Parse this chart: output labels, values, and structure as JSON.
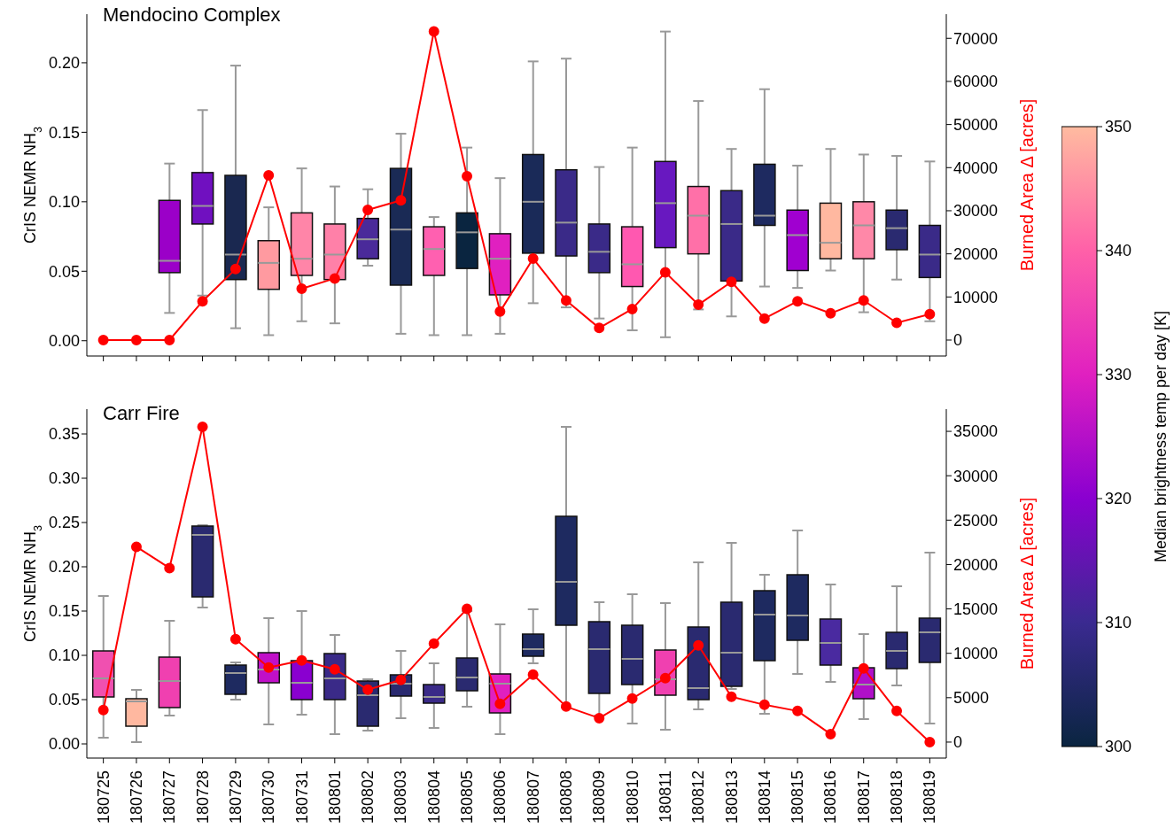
{
  "chart_data": [
    {
      "type": "box",
      "title": "Mendocino Complex",
      "ylabel": "CrIS NEMR NH$_{3}$",
      "y2label": "Burned Area Δ [acres]",
      "categories": [
        "180725",
        "180726",
        "180727",
        "180728",
        "180729",
        "180730",
        "180731",
        "180801",
        "180802",
        "180803",
        "180804",
        "180805",
        "180806",
        "180807",
        "180808",
        "180809",
        "180810",
        "180811",
        "180812",
        "180813",
        "180814",
        "180815",
        "180816",
        "180817",
        "180818",
        "180819"
      ],
      "series": [
        {
          "boxes": [
            null,
            null,
            {
              "low": 0.02,
              "q1": 0.049,
              "median": 0.0575,
              "q3": 0.101,
              "high": 0.1275
            },
            {
              "low": 0.0325,
              "q1": 0.084,
              "median": 0.097,
              "q3": 0.121,
              "high": 0.166
            },
            {
              "low": 0.009,
              "q1": 0.044,
              "median": 0.062,
              "q3": 0.119,
              "high": 0.198
            },
            {
              "low": 0.004,
              "q1": 0.037,
              "median": 0.056,
              "q3": 0.072,
              "high": 0.096
            },
            {
              "low": 0.014,
              "q1": 0.047,
              "median": 0.059,
              "q3": 0.092,
              "high": 0.124
            },
            {
              "low": 0.0125,
              "q1": 0.044,
              "median": 0.062,
              "q3": 0.084,
              "high": 0.111
            },
            {
              "low": 0.054,
              "q1": 0.059,
              "median": 0.073,
              "q3": 0.088,
              "high": 0.109
            },
            {
              "low": 0.005,
              "q1": 0.04,
              "median": 0.08,
              "q3": 0.124,
              "high": 0.149
            },
            {
              "low": 0.004,
              "q1": 0.047,
              "median": 0.066,
              "q3": 0.082,
              "high": 0.089
            },
            {
              "low": 0.004,
              "q1": 0.052,
              "median": 0.078,
              "q3": 0.092,
              "high": 0.139
            },
            {
              "low": 0.005,
              "q1": 0.033,
              "median": 0.059,
              "q3": 0.077,
              "high": 0.117
            },
            {
              "low": 0.027,
              "q1": 0.063,
              "median": 0.1,
              "q3": 0.134,
              "high": 0.201
            },
            {
              "low": 0.024,
              "q1": 0.061,
              "median": 0.085,
              "q3": 0.123,
              "high": 0.203
            },
            {
              "low": 0.016,
              "q1": 0.049,
              "median": 0.064,
              "q3": 0.084,
              "high": 0.125
            },
            {
              "low": 0.0075,
              "q1": 0.039,
              "median": 0.055,
              "q3": 0.082,
              "high": 0.139
            },
            {
              "low": 0.0025,
              "q1": 0.067,
              "median": 0.099,
              "q3": 0.129,
              "high": 0.2225
            },
            {
              "low": 0.0225,
              "q1": 0.0625,
              "median": 0.09,
              "q3": 0.111,
              "high": 0.1725
            },
            {
              "low": 0.0175,
              "q1": 0.043,
              "median": 0.084,
              "q3": 0.108,
              "high": 0.138
            },
            {
              "low": 0.039,
              "q1": 0.083,
              "median": 0.09,
              "q3": 0.127,
              "high": 0.181
            },
            {
              "low": 0.038,
              "q1": 0.0505,
              "median": 0.076,
              "q3": 0.094,
              "high": 0.126
            },
            {
              "low": 0.0505,
              "q1": 0.059,
              "median": 0.0705,
              "q3": 0.099,
              "high": 0.138
            },
            {
              "low": 0.0205,
              "q1": 0.059,
              "median": 0.083,
              "q3": 0.1,
              "high": 0.134
            },
            {
              "low": 0.044,
              "q1": 0.0655,
              "median": 0.081,
              "q3": 0.094,
              "high": 0.133
            },
            {
              "low": 0.014,
              "q1": 0.0455,
              "median": 0.062,
              "q3": 0.083,
              "high": 0.129
            }
          ],
          "colors": [
            null,
            null,
            "#9b00c8",
            "#7010c0",
            "#1a2850",
            "#ff9aa0",
            "#ff85a8",
            "#ff80a8",
            "#4a2a9a",
            "#1a2a55",
            "#ff60b0",
            "#0a2540",
            "#e020c0",
            "#1a2a58",
            "#3a2a88",
            "#3a2a88",
            "#ff58b0",
            "#6818c0",
            "#ff70a8",
            "#3a2a88",
            "#1e2a60",
            "#a000d0",
            "#ffb8a0",
            "#ff88a8",
            "#2a2a70",
            "#3a2a88"
          ]
        },
        {
          "type": "line",
          "axis": "y2",
          "color": "#ff0000",
          "values": [
            0,
            0,
            0,
            9000,
            16500,
            38200,
            11900,
            14300,
            30200,
            32400,
            71600,
            38000,
            6600,
            18900,
            9200,
            2800,
            7200,
            15700,
            8200,
            13500,
            5000,
            9000,
            6200,
            9200,
            4000,
            6000
          ]
        }
      ],
      "ylim": [
        -0.011,
        0.235
      ],
      "yticks": [
        {
          "value": 0,
          "label": "0.00"
        },
        {
          "value": 0.05,
          "label": "0.05"
        },
        {
          "value": 0.1,
          "label": "0.10"
        },
        {
          "value": 0.15,
          "label": "0.15"
        },
        {
          "value": 0.2,
          "label": "0.20"
        }
      ],
      "y2lim": [
        -3700,
        75600
      ],
      "y2ticks": [
        0,
        10000,
        20000,
        30000,
        40000,
        50000,
        60000,
        70000
      ],
      "tick_labels": "y",
      "marker": "circle",
      "grid": false,
      "legend": false,
      "clim": [
        300,
        350
      ],
      "cticks": [
        300,
        310,
        320,
        330,
        340,
        350
      ],
      "clabel": "Median brightness temp per day [K]"
    },
    {
      "type": "box",
      "title": "Carr Fire",
      "ylabel": "CrIS NEMR NH$_{3}$",
      "y2label": "Burned Area Δ [acres]",
      "categories": [
        "180725",
        "180726",
        "180727",
        "180728",
        "180729",
        "180730",
        "180731",
        "180801",
        "180802",
        "180803",
        "180804",
        "180805",
        "180806",
        "180807",
        "180808",
        "180809",
        "180810",
        "180811",
        "180812",
        "180813",
        "180814",
        "180815",
        "180816",
        "180817",
        "180818",
        "180819"
      ],
      "series": [
        {
          "boxes": [
            {
              "low": 0.007,
              "q1": 0.053,
              "median": 0.074,
              "q3": 0.105,
              "high": 0.167
            },
            {
              "low": 0.002,
              "q1": 0.02,
              "median": 0.048,
              "q3": 0.051,
              "high": 0.061
            },
            {
              "low": 0.032,
              "q1": 0.041,
              "median": 0.071,
              "q3": 0.098,
              "high": 0.139
            },
            {
              "low": 0.154,
              "q1": 0.166,
              "median": 0.236,
              "q3": 0.246,
              "high": 0.247
            },
            {
              "low": 0.05,
              "q1": 0.056,
              "median": 0.08,
              "q3": 0.089,
              "high": 0.092
            },
            {
              "low": 0.022,
              "q1": 0.069,
              "median": 0.084,
              "q3": 0.103,
              "high": 0.142
            },
            {
              "low": 0.033,
              "q1": 0.05,
              "median": 0.069,
              "q3": 0.094,
              "high": 0.15
            },
            {
              "low": 0.011,
              "q1": 0.05,
              "median": 0.074,
              "q3": 0.102,
              "high": 0.123
            },
            {
              "low": 0.015,
              "q1": 0.02,
              "median": 0.055,
              "q3": 0.071,
              "high": 0.073
            },
            {
              "low": 0.029,
              "q1": 0.054,
              "median": 0.068,
              "q3": 0.078,
              "high": 0.105
            },
            {
              "low": 0.018,
              "q1": 0.046,
              "median": 0.053,
              "q3": 0.067,
              "high": 0.091
            },
            {
              "low": 0.042,
              "q1": 0.06,
              "median": 0.075,
              "q3": 0.097,
              "high": 0.15
            },
            {
              "low": 0.011,
              "q1": 0.035,
              "median": 0.068,
              "q3": 0.079,
              "high": 0.135
            },
            {
              "low": 0.091,
              "q1": 0.099,
              "median": 0.107,
              "q3": 0.124,
              "high": 0.152
            },
            {
              "low": 0.041,
              "q1": 0.134,
              "median": 0.183,
              "q3": 0.257,
              "high": 0.358
            },
            {
              "low": 0.032,
              "q1": 0.057,
              "median": 0.107,
              "q3": 0.138,
              "high": 0.16
            },
            {
              "low": 0.023,
              "q1": 0.067,
              "median": 0.096,
              "q3": 0.134,
              "high": 0.169
            },
            {
              "low": 0.016,
              "q1": 0.055,
              "median": 0.073,
              "q3": 0.106,
              "high": 0.159
            },
            {
              "low": 0.039,
              "q1": 0.05,
              "median": 0.063,
              "q3": 0.132,
              "high": 0.205
            },
            {
              "low": 0.062,
              "q1": 0.065,
              "median": 0.103,
              "q3": 0.16,
              "high": 0.227
            },
            {
              "low": 0.034,
              "q1": 0.094,
              "median": 0.146,
              "q3": 0.173,
              "high": 0.191
            },
            {
              "low": 0.079,
              "q1": 0.117,
              "median": 0.145,
              "q3": 0.191,
              "high": 0.241
            },
            {
              "low": 0.07,
              "q1": 0.089,
              "median": 0.114,
              "q3": 0.141,
              "high": 0.18
            },
            {
              "low": 0.028,
              "q1": 0.051,
              "median": 0.067,
              "q3": 0.086,
              "high": 0.124
            },
            {
              "low": 0.066,
              "q1": 0.085,
              "median": 0.105,
              "q3": 0.126,
              "high": 0.178
            },
            {
              "low": 0.023,
              "q1": 0.092,
              "median": 0.126,
              "q3": 0.142,
              "high": 0.216
            }
          ],
          "colors": [
            "#f050b0",
            "#ffb8a0",
            "#f040b0",
            "#2a2a70",
            "#1e2a60",
            "#c010c8",
            "#8a00d0",
            "#3a2a88",
            "#2a2a70",
            "#2a2a70",
            "#3a2a88",
            "#2a2a70",
            "#e020c0",
            "#1e2a60",
            "#1e2a60",
            "#2a2a70",
            "#2a2a70",
            "#f040b0",
            "#2a2a70",
            "#2a2a70",
            "#1e2a60",
            "#1e2a60",
            "#4a2aa0",
            "#b010c8",
            "#2a2a70",
            "#2a2a70"
          ]
        },
        {
          "type": "line",
          "axis": "y2",
          "color": "#ff0000",
          "values": [
            3600,
            22000,
            19600,
            35500,
            11600,
            8400,
            9200,
            8200,
            5900,
            7000,
            11100,
            15000,
            4300,
            7600,
            4000,
            2700,
            4900,
            7200,
            10900,
            5100,
            4200,
            3500,
            900,
            8300,
            3500,
            0
          ]
        }
      ],
      "ylim": [
        -0.016,
        0.378
      ],
      "yticks": [
        {
          "value": 0,
          "label": "0.00"
        },
        {
          "value": 0.05,
          "label": "0.05"
        },
        {
          "value": 0.1,
          "label": "0.10"
        },
        {
          "value": 0.15,
          "label": "0.15"
        },
        {
          "value": 0.2,
          "label": "0.20"
        },
        {
          "value": 0.25,
          "label": "0.25"
        },
        {
          "value": 0.3,
          "label": "0.30"
        },
        {
          "value": 0.35,
          "label": "0.35"
        }
      ],
      "y2lim": [
        -1800,
        37500
      ],
      "y2ticks": [
        0,
        5000,
        10000,
        15000,
        20000,
        25000,
        30000,
        35000
      ],
      "marker": "circle",
      "grid": false,
      "legend": false
    }
  ]
}
